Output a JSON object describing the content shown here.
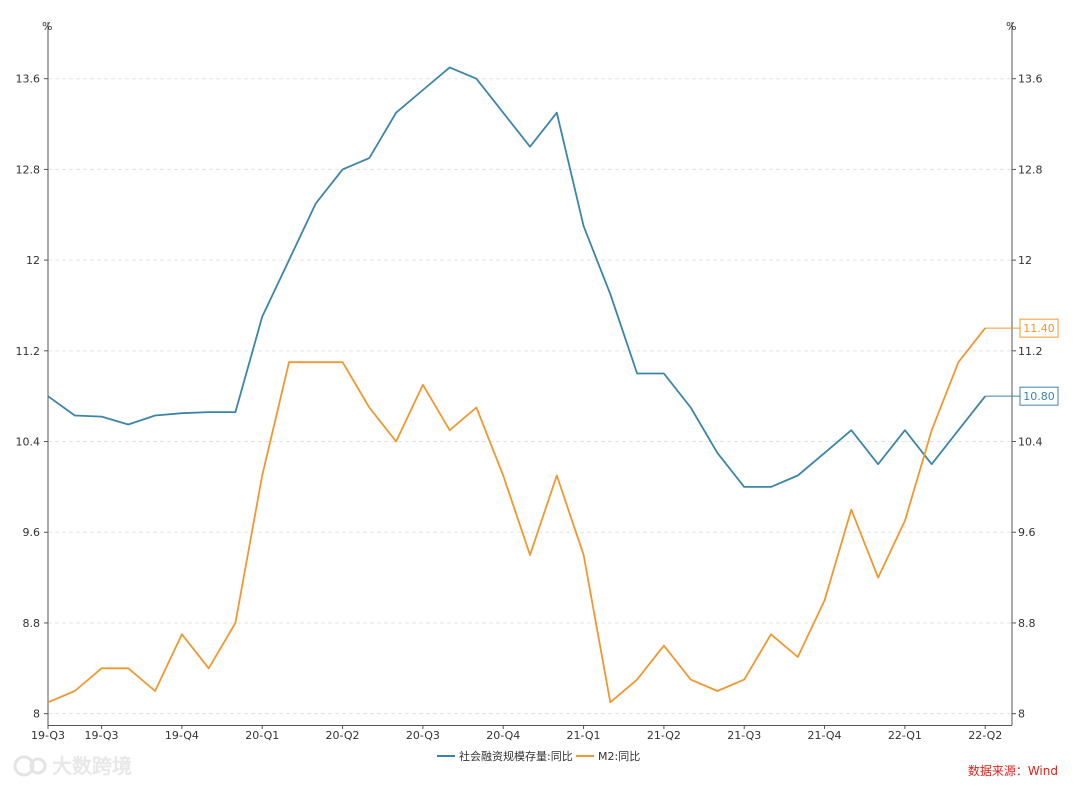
{
  "chart_data": {
    "type": "line",
    "y_unit_left": "%",
    "y_unit_right": "%",
    "ylim": [
      7.9,
      14.1
    ],
    "y_ticks": [
      8,
      8.8,
      9.6,
      10.4,
      11.2,
      12,
      12.8,
      13.6
    ],
    "y_tick_labels": [
      "8",
      "8.8",
      "9.6",
      "10.4",
      "11.2",
      "12",
      "12.8",
      "13.6"
    ],
    "x_months": [
      "2019-07",
      "2019-08",
      "2019-09",
      "2019-10",
      "2019-11",
      "2019-12",
      "2020-01",
      "2020-02",
      "2020-03",
      "2020-04",
      "2020-05",
      "2020-06",
      "2020-07",
      "2020-08",
      "2020-09",
      "2020-10",
      "2020-11",
      "2020-12",
      "2021-01",
      "2021-02",
      "2021-03",
      "2021-04",
      "2021-05",
      "2021-06",
      "2021-07",
      "2021-08",
      "2021-09",
      "2021-10",
      "2021-11",
      "2021-12",
      "2022-01",
      "2022-02",
      "2022-03",
      "2022-04",
      "2022-05",
      "2022-06",
      "2022-07"
    ],
    "x_tick_labels": [
      {
        "label": "19-Q3",
        "month": "2019-07"
      },
      {
        "label": "19-Q3",
        "month": "2019-09"
      },
      {
        "label": "19-Q4",
        "month": "2019-12"
      },
      {
        "label": "20-Q1",
        "month": "2020-03"
      },
      {
        "label": "20-Q2",
        "month": "2020-06"
      },
      {
        "label": "20-Q3",
        "month": "2020-09"
      },
      {
        "label": "20-Q4",
        "month": "2020-12"
      },
      {
        "label": "21-Q1",
        "month": "2021-03"
      },
      {
        "label": "21-Q2",
        "month": "2021-06"
      },
      {
        "label": "21-Q3",
        "month": "2021-09"
      },
      {
        "label": "21-Q4",
        "month": "2021-12"
      },
      {
        "label": "22-Q1",
        "month": "2022-03"
      },
      {
        "label": "22-Q2",
        "month": "2022-06"
      }
    ],
    "series": [
      {
        "name": "社会融资规模存量:同比",
        "color": "#3b85a8",
        "values": [
          10.8,
          10.63,
          10.62,
          10.55,
          10.63,
          10.65,
          10.66,
          10.66,
          11.5,
          12.0,
          12.5,
          12.8,
          12.9,
          13.3,
          13.5,
          13.7,
          13.6,
          13.3,
          13.0,
          13.3,
          12.3,
          11.7,
          11.0,
          11.0,
          10.7,
          10.3,
          10.0,
          10.0,
          10.1,
          10.3,
          10.5,
          10.2,
          10.5,
          10.2,
          10.5,
          10.8,
          null
        ],
        "end_label": "10.80"
      },
      {
        "name": "M2:同比",
        "color": "#f0982f",
        "values": [
          8.1,
          8.2,
          8.4,
          8.4,
          8.2,
          8.7,
          8.4,
          8.8,
          10.1,
          11.1,
          11.1,
          11.1,
          10.7,
          10.4,
          10.9,
          10.5,
          10.7,
          10.1,
          9.4,
          10.1,
          9.4,
          8.1,
          8.3,
          8.6,
          8.3,
          8.2,
          8.3,
          8.7,
          8.5,
          9.0,
          9.8,
          9.2,
          9.7,
          10.5,
          11.1,
          11.4,
          null
        ],
        "end_label": "11.40"
      }
    ],
    "legend_position": "bottom-center",
    "grid": true
  },
  "source_text": "数据来源：Wind",
  "watermark_text": "大数跨境"
}
